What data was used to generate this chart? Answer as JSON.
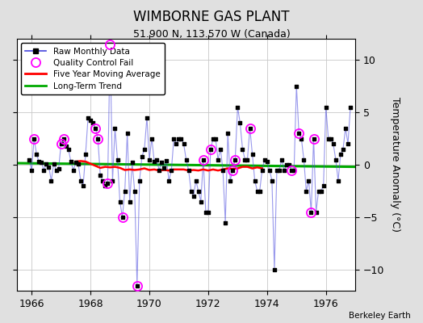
{
  "title": "WIMBORNE GAS PLANT",
  "subtitle": "51.900 N, 113.570 W (Canada)",
  "ylabel": "Temperature Anomaly (°C)",
  "credit": "Berkeley Earth",
  "xlim": [
    1965.5,
    1977.0
  ],
  "ylim": [
    -12,
    12
  ],
  "yticks": [
    -10,
    -5,
    0,
    5,
    10
  ],
  "xticks": [
    1966,
    1968,
    1970,
    1972,
    1974,
    1976
  ],
  "fig_bg_color": "#e0e0e0",
  "plot_bg_color": "#ffffff",
  "raw_color": "#4444dd",
  "raw_line_alpha": 0.55,
  "dot_color": "#000000",
  "qc_color": "#ff00ff",
  "ma_color": "#ff0000",
  "trend_color": "#00aa00",
  "monthly_data": [
    [
      1965.917,
      0.5
    ],
    [
      1966.0,
      -0.5
    ],
    [
      1966.083,
      2.5
    ],
    [
      1966.167,
      1.0
    ],
    [
      1966.25,
      0.3
    ],
    [
      1966.333,
      0.2
    ],
    [
      1966.417,
      -0.5
    ],
    [
      1966.5,
      0.1
    ],
    [
      1966.583,
      -0.2
    ],
    [
      1966.667,
      -1.5
    ],
    [
      1966.75,
      0.1
    ],
    [
      1966.833,
      -0.5
    ],
    [
      1966.917,
      -0.4
    ],
    [
      1967.0,
      2.0
    ],
    [
      1967.083,
      2.5
    ],
    [
      1967.167,
      1.8
    ],
    [
      1967.25,
      1.5
    ],
    [
      1967.333,
      0.3
    ],
    [
      1967.417,
      -0.5
    ],
    [
      1967.5,
      0.2
    ],
    [
      1967.583,
      0.1
    ],
    [
      1967.667,
      -1.5
    ],
    [
      1967.75,
      -2.0
    ],
    [
      1967.833,
      1.0
    ],
    [
      1967.917,
      4.5
    ],
    [
      1968.0,
      4.2
    ],
    [
      1968.083,
      4.0
    ],
    [
      1968.167,
      3.5
    ],
    [
      1968.25,
      2.5
    ],
    [
      1968.333,
      -1.0
    ],
    [
      1968.417,
      -1.5
    ],
    [
      1968.5,
      -2.0
    ],
    [
      1968.583,
      -1.8
    ],
    [
      1968.667,
      11.5
    ],
    [
      1968.75,
      -1.5
    ],
    [
      1968.833,
      3.5
    ],
    [
      1968.917,
      0.5
    ],
    [
      1969.0,
      -3.5
    ],
    [
      1969.083,
      -5.0
    ],
    [
      1969.167,
      -2.5
    ],
    [
      1969.25,
      3.0
    ],
    [
      1969.333,
      -3.5
    ],
    [
      1969.417,
      0.2
    ],
    [
      1969.5,
      -2.5
    ],
    [
      1969.583,
      -11.5
    ],
    [
      1969.667,
      -1.5
    ],
    [
      1969.75,
      0.8
    ],
    [
      1969.833,
      1.5
    ],
    [
      1969.917,
      4.5
    ],
    [
      1970.0,
      0.5
    ],
    [
      1970.083,
      2.5
    ],
    [
      1970.167,
      0.3
    ],
    [
      1970.25,
      0.5
    ],
    [
      1970.333,
      -0.5
    ],
    [
      1970.417,
      0.2
    ],
    [
      1970.5,
      -0.3
    ],
    [
      1970.583,
      0.4
    ],
    [
      1970.667,
      -1.5
    ],
    [
      1970.75,
      -0.5
    ],
    [
      1970.833,
      2.5
    ],
    [
      1970.917,
      2.0
    ],
    [
      1971.0,
      2.5
    ],
    [
      1971.083,
      2.5
    ],
    [
      1971.167,
      2.0
    ],
    [
      1971.25,
      0.5
    ],
    [
      1971.333,
      -0.5
    ],
    [
      1971.417,
      -2.5
    ],
    [
      1971.5,
      -3.0
    ],
    [
      1971.583,
      -1.5
    ],
    [
      1971.667,
      -2.5
    ],
    [
      1971.75,
      -3.5
    ],
    [
      1971.833,
      0.5
    ],
    [
      1971.917,
      -4.5
    ],
    [
      1972.0,
      -4.5
    ],
    [
      1972.083,
      1.5
    ],
    [
      1972.167,
      2.5
    ],
    [
      1972.25,
      2.5
    ],
    [
      1972.333,
      0.5
    ],
    [
      1972.417,
      1.5
    ],
    [
      1972.5,
      -0.5
    ],
    [
      1972.583,
      -5.5
    ],
    [
      1972.667,
      3.0
    ],
    [
      1972.75,
      -1.5
    ],
    [
      1972.833,
      -0.5
    ],
    [
      1972.917,
      0.5
    ],
    [
      1973.0,
      5.5
    ],
    [
      1973.083,
      4.0
    ],
    [
      1973.167,
      1.5
    ],
    [
      1973.25,
      0.5
    ],
    [
      1973.333,
      0.5
    ],
    [
      1973.417,
      3.5
    ],
    [
      1973.5,
      1.0
    ],
    [
      1973.583,
      -1.5
    ],
    [
      1973.667,
      -2.5
    ],
    [
      1973.75,
      -2.5
    ],
    [
      1973.833,
      -0.5
    ],
    [
      1973.917,
      0.5
    ],
    [
      1974.0,
      0.3
    ],
    [
      1974.083,
      -0.5
    ],
    [
      1974.167,
      -1.5
    ],
    [
      1974.25,
      -10.0
    ],
    [
      1974.333,
      -0.5
    ],
    [
      1974.417,
      -0.5
    ],
    [
      1974.5,
      0.5
    ],
    [
      1974.583,
      -0.5
    ],
    [
      1974.667,
      0.0
    ],
    [
      1974.75,
      0.0
    ],
    [
      1974.833,
      -0.5
    ],
    [
      1974.917,
      -0.5
    ],
    [
      1975.0,
      7.5
    ],
    [
      1975.083,
      3.0
    ],
    [
      1975.167,
      2.5
    ],
    [
      1975.25,
      0.5
    ],
    [
      1975.333,
      -2.5
    ],
    [
      1975.417,
      -1.5
    ],
    [
      1975.5,
      -4.5
    ],
    [
      1975.583,
      2.5
    ],
    [
      1975.667,
      -4.5
    ],
    [
      1975.75,
      -2.5
    ],
    [
      1975.833,
      -2.5
    ],
    [
      1975.917,
      -2.0
    ],
    [
      1976.0,
      5.5
    ],
    [
      1976.083,
      2.5
    ],
    [
      1976.167,
      2.5
    ],
    [
      1976.25,
      2.0
    ],
    [
      1976.333,
      0.5
    ],
    [
      1976.417,
      -1.5
    ],
    [
      1976.5,
      1.0
    ],
    [
      1976.583,
      1.5
    ],
    [
      1976.667,
      3.5
    ],
    [
      1976.75,
      2.0
    ],
    [
      1976.833,
      5.5
    ]
  ],
  "qc_fail_indices": [
    2,
    13,
    14,
    27,
    28,
    32,
    33,
    38,
    44,
    71,
    74,
    83,
    84,
    90,
    107,
    110,
    115,
    116
  ],
  "moving_avg": [
    [
      1967.5,
      0.3
    ],
    [
      1967.667,
      0.35
    ],
    [
      1967.833,
      0.3
    ],
    [
      1968.0,
      0.1
    ],
    [
      1968.167,
      -0.1
    ],
    [
      1968.333,
      -0.3
    ],
    [
      1968.5,
      -0.2
    ],
    [
      1968.667,
      -0.25
    ],
    [
      1968.833,
      -0.2
    ],
    [
      1969.0,
      -0.3
    ],
    [
      1969.167,
      -0.5
    ],
    [
      1969.333,
      -0.45
    ],
    [
      1969.5,
      -0.5
    ],
    [
      1969.667,
      -0.45
    ],
    [
      1969.833,
      -0.35
    ],
    [
      1970.0,
      -0.5
    ],
    [
      1970.167,
      -0.45
    ],
    [
      1970.333,
      -0.55
    ],
    [
      1970.5,
      -0.5
    ],
    [
      1970.667,
      -0.55
    ],
    [
      1970.833,
      -0.45
    ],
    [
      1971.0,
      -0.45
    ],
    [
      1971.167,
      -0.45
    ],
    [
      1971.333,
      -0.55
    ],
    [
      1971.5,
      -0.5
    ],
    [
      1971.667,
      -0.55
    ],
    [
      1971.833,
      -0.45
    ],
    [
      1972.0,
      -0.55
    ],
    [
      1972.167,
      -0.45
    ],
    [
      1972.333,
      -0.55
    ],
    [
      1972.5,
      -0.45
    ],
    [
      1972.667,
      -0.35
    ],
    [
      1972.833,
      -0.4
    ],
    [
      1973.0,
      -0.35
    ],
    [
      1973.167,
      -0.2
    ],
    [
      1973.333,
      -0.2
    ],
    [
      1973.5,
      -0.35
    ],
    [
      1973.667,
      -0.25
    ],
    [
      1973.833,
      -0.35
    ]
  ],
  "trend_x": [
    1965.5,
    1977.0
  ],
  "trend_y": [
    0.15,
    -0.2
  ]
}
